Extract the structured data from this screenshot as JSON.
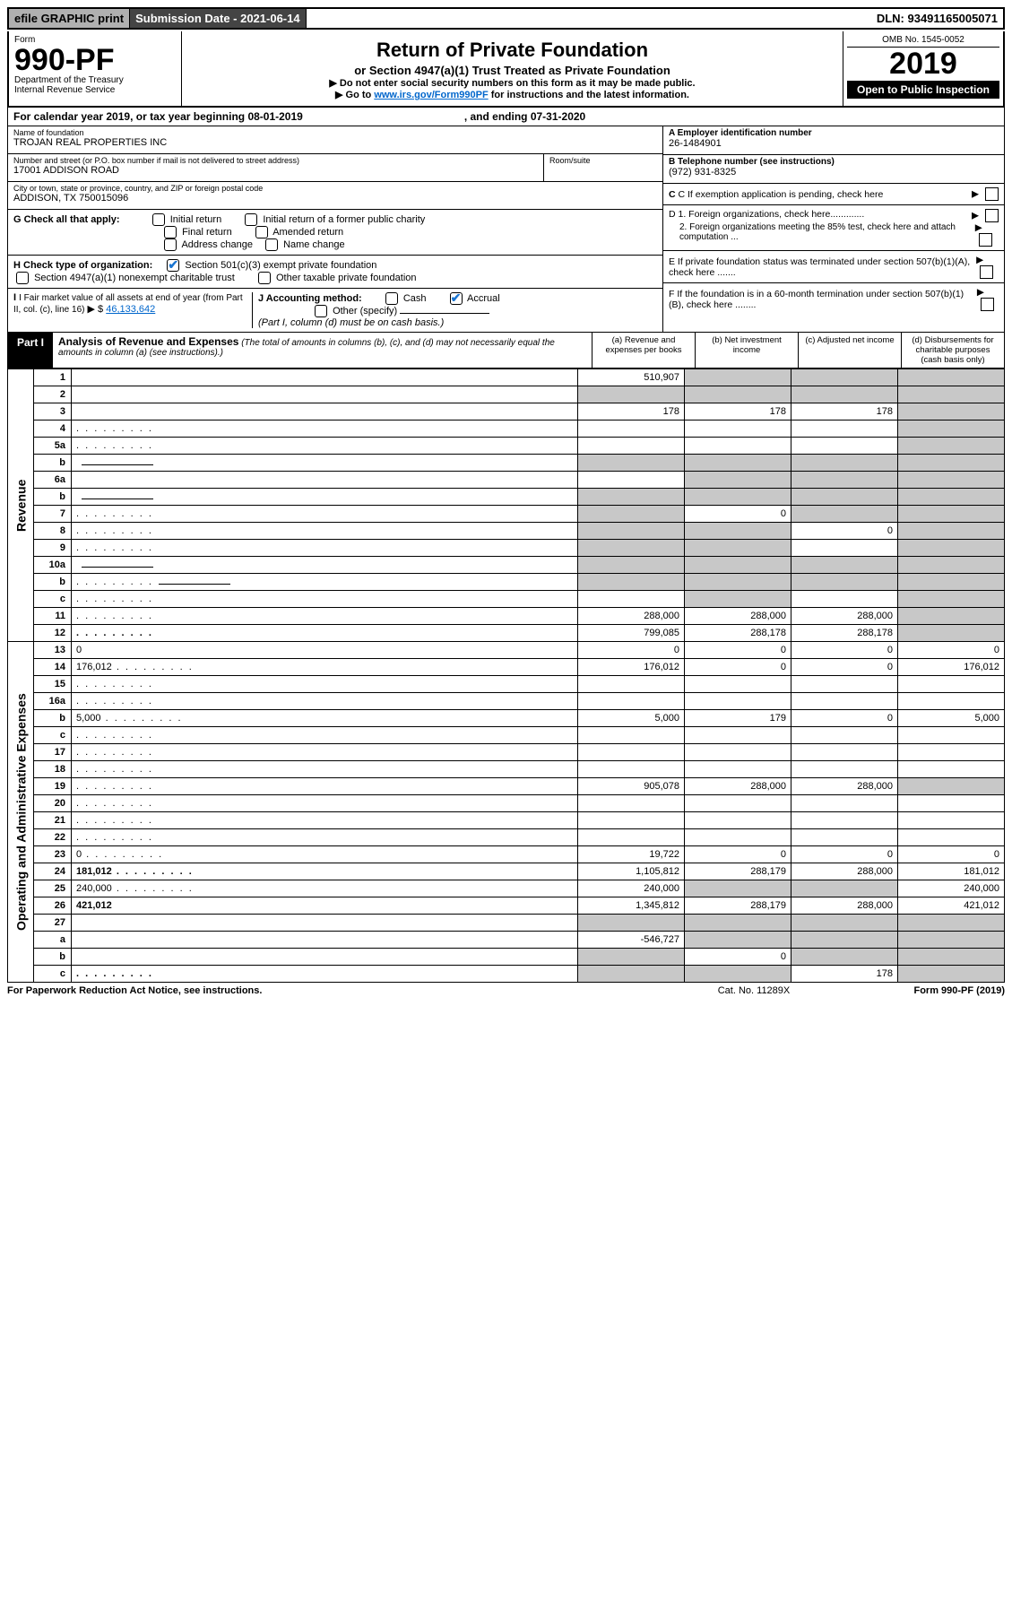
{
  "topbar": {
    "efile": "efile GRAPHIC print",
    "subdate_label": "Submission Date - 2021-06-14",
    "dln": "DLN: 93491165005071"
  },
  "header": {
    "form_label": "Form",
    "form_number": "990-PF",
    "dept1": "Department of the Treasury",
    "dept2": "Internal Revenue Service",
    "title": "Return of Private Foundation",
    "subtitle": "or Section 4947(a)(1) Trust Treated as Private Foundation",
    "note1": "▶ Do not enter social security numbers on this form as it may be made public.",
    "note2_pre": "▶ Go to ",
    "note2_link": "www.irs.gov/Form990PF",
    "note2_post": " for instructions and the latest information.",
    "omb": "OMB No. 1545-0052",
    "year": "2019",
    "open": "Open to Public Inspection"
  },
  "calyear": {
    "text1": "For calendar year 2019, or tax year beginning 08-01-2019",
    "text2": ", and ending 07-31-2020"
  },
  "info": {
    "name_label": "Name of foundation",
    "name": "TROJAN REAL PROPERTIES INC",
    "addr_label": "Number and street (or P.O. box number if mail is not delivered to street address)",
    "addr": "17001 ADDISON ROAD",
    "room_label": "Room/suite",
    "city_label": "City or town, state or province, country, and ZIP or foreign postal code",
    "city": "ADDISON, TX  750015096",
    "ein_label": "A Employer identification number",
    "ein": "26-1484901",
    "tel_label": "B Telephone number (see instructions)",
    "tel": "(972) 931-8325",
    "c_label": "C If exemption application is pending, check here",
    "d1_label": "D 1. Foreign organizations, check here.............",
    "d2_label": "2. Foreign organizations meeting the 85% test, check here and attach computation ...",
    "e_label": "E  If private foundation status was terminated under section 507(b)(1)(A), check here .......",
    "f_label": "F  If the foundation is in a 60-month termination under section 507(b)(1)(B), check here ........"
  },
  "g": {
    "label": "G Check all that apply:",
    "opts": [
      "Initial return",
      "Initial return of a former public charity",
      "Final return",
      "Amended return",
      "Address change",
      "Name change"
    ]
  },
  "h": {
    "label": "H Check type of organization:",
    "opt1": "Section 501(c)(3) exempt private foundation",
    "opt2": "Section 4947(a)(1) nonexempt charitable trust",
    "opt3": "Other taxable private foundation"
  },
  "i": {
    "label": "I Fair market value of all assets at end of year (from Part II, col. (c), line 16)",
    "arrow": "▶ $",
    "val": "46,133,642"
  },
  "j": {
    "label": "J Accounting method:",
    "cash": "Cash",
    "accrual": "Accrual",
    "other": "Other (specify)",
    "note": "(Part I, column (d) must be on cash basis.)"
  },
  "part1": {
    "label": "Part I",
    "title": "Analysis of Revenue and Expenses",
    "title_note": "(The total of amounts in columns (b), (c), and (d) may not necessarily equal the amounts in column (a) (see instructions).)",
    "cols": {
      "a": "(a) Revenue and expenses per books",
      "b": "(b) Net investment income",
      "c": "(c) Adjusted net income",
      "d": "(d) Disbursements for charitable purposes (cash basis only)"
    },
    "side_rev": "Revenue",
    "side_exp": "Operating and Administrative Expenses"
  },
  "rows": [
    {
      "n": "1",
      "d": "",
      "a": "510,907",
      "b": "",
      "c": "",
      "bs": true,
      "cs": true,
      "ds": true
    },
    {
      "n": "2",
      "d": "",
      "a": "",
      "b": "",
      "c": "",
      "as": true,
      "bs": true,
      "cs": true,
      "ds": true,
      "bold_not": true
    },
    {
      "n": "3",
      "d": "",
      "a": "178",
      "b": "178",
      "c": "178",
      "ds": true
    },
    {
      "n": "4",
      "d": "",
      "a": "",
      "b": "",
      "c": "",
      "ds": true,
      "dots": true
    },
    {
      "n": "5a",
      "d": "",
      "a": "",
      "b": "",
      "c": "",
      "ds": true,
      "dots": true
    },
    {
      "n": "b",
      "d": "",
      "a": "",
      "b": "",
      "c": "",
      "as": true,
      "bs": true,
      "cs": true,
      "ds": true,
      "underline": true
    },
    {
      "n": "6a",
      "d": "",
      "a": "",
      "b": "",
      "c": "",
      "bs": true,
      "cs": true,
      "ds": true
    },
    {
      "n": "b",
      "d": "",
      "a": "",
      "b": "",
      "c": "",
      "as": true,
      "bs": true,
      "cs": true,
      "ds": true,
      "underline": true
    },
    {
      "n": "7",
      "d": "",
      "a": "",
      "b": "0",
      "c": "",
      "as": true,
      "cs": true,
      "ds": true,
      "dots": true
    },
    {
      "n": "8",
      "d": "",
      "a": "",
      "b": "",
      "c": "0",
      "as": true,
      "bs": true,
      "ds": true,
      "dots": true
    },
    {
      "n": "9",
      "d": "",
      "a": "",
      "b": "",
      "c": "",
      "as": true,
      "bs": true,
      "ds": true,
      "dots": true
    },
    {
      "n": "10a",
      "d": "",
      "a": "",
      "b": "",
      "c": "",
      "as": true,
      "bs": true,
      "cs": true,
      "ds": true,
      "underline": true
    },
    {
      "n": "b",
      "d": "",
      "a": "",
      "b": "",
      "c": "",
      "as": true,
      "bs": true,
      "cs": true,
      "ds": true,
      "underline": true,
      "dots": true
    },
    {
      "n": "c",
      "d": "",
      "a": "",
      "b": "",
      "c": "",
      "bs": true,
      "ds": true,
      "dots": true
    },
    {
      "n": "11",
      "d": "",
      "a": "288,000",
      "b": "288,000",
      "c": "288,000",
      "ds": true,
      "dots": true
    },
    {
      "n": "12",
      "d": "",
      "a": "799,085",
      "b": "288,178",
      "c": "288,178",
      "ds": true,
      "bold": true,
      "dots": true
    },
    {
      "n": "13",
      "d": "0",
      "a": "0",
      "b": "0",
      "c": "0"
    },
    {
      "n": "14",
      "d": "176,012",
      "a": "176,012",
      "b": "0",
      "c": "0",
      "dots": true
    },
    {
      "n": "15",
      "d": "",
      "a": "",
      "b": "",
      "c": "",
      "dots": true
    },
    {
      "n": "16a",
      "d": "",
      "a": "",
      "b": "",
      "c": "",
      "dots": true
    },
    {
      "n": "b",
      "d": "5,000",
      "a": "5,000",
      "b": "179",
      "c": "0",
      "dots": true
    },
    {
      "n": "c",
      "d": "",
      "a": "",
      "b": "",
      "c": "",
      "dots": true
    },
    {
      "n": "17",
      "d": "",
      "a": "",
      "b": "",
      "c": "",
      "dots": true
    },
    {
      "n": "18",
      "d": "",
      "a": "",
      "b": "",
      "c": "",
      "dots": true
    },
    {
      "n": "19",
      "d": "",
      "a": "905,078",
      "b": "288,000",
      "c": "288,000",
      "ds": true,
      "dots": true
    },
    {
      "n": "20",
      "d": "",
      "a": "",
      "b": "",
      "c": "",
      "dots": true
    },
    {
      "n": "21",
      "d": "",
      "a": "",
      "b": "",
      "c": "",
      "dots": true
    },
    {
      "n": "22",
      "d": "",
      "a": "",
      "b": "",
      "c": "",
      "dots": true
    },
    {
      "n": "23",
      "d": "0",
      "a": "19,722",
      "b": "0",
      "c": "0",
      "dots": true
    },
    {
      "n": "24",
      "d": "181,012",
      "a": "1,105,812",
      "b": "288,179",
      "c": "288,000",
      "bold": true,
      "dots": true
    },
    {
      "n": "25",
      "d": "240,000",
      "a": "240,000",
      "b": "",
      "c": "",
      "bs": true,
      "cs": true,
      "dots": true
    },
    {
      "n": "26",
      "d": "421,012",
      "a": "1,345,812",
      "b": "288,179",
      "c": "288,000",
      "bold": true
    },
    {
      "n": "27",
      "d": "",
      "a": "",
      "b": "",
      "c": "",
      "as": true,
      "bs": true,
      "cs": true,
      "ds": true
    },
    {
      "n": "a",
      "d": "",
      "a": "-546,727",
      "b": "",
      "c": "",
      "bs": true,
      "cs": true,
      "ds": true,
      "bold": true
    },
    {
      "n": "b",
      "d": "",
      "a": "",
      "b": "0",
      "c": "",
      "as": true,
      "cs": true,
      "ds": true,
      "bold": true
    },
    {
      "n": "c",
      "d": "",
      "a": "",
      "b": "",
      "c": "178",
      "as": true,
      "bs": true,
      "ds": true,
      "bold": true,
      "dots": true
    }
  ],
  "footer": {
    "left": "For Paperwork Reduction Act Notice, see instructions.",
    "mid": "Cat. No. 11289X",
    "right": "Form 990-PF (2019)"
  }
}
